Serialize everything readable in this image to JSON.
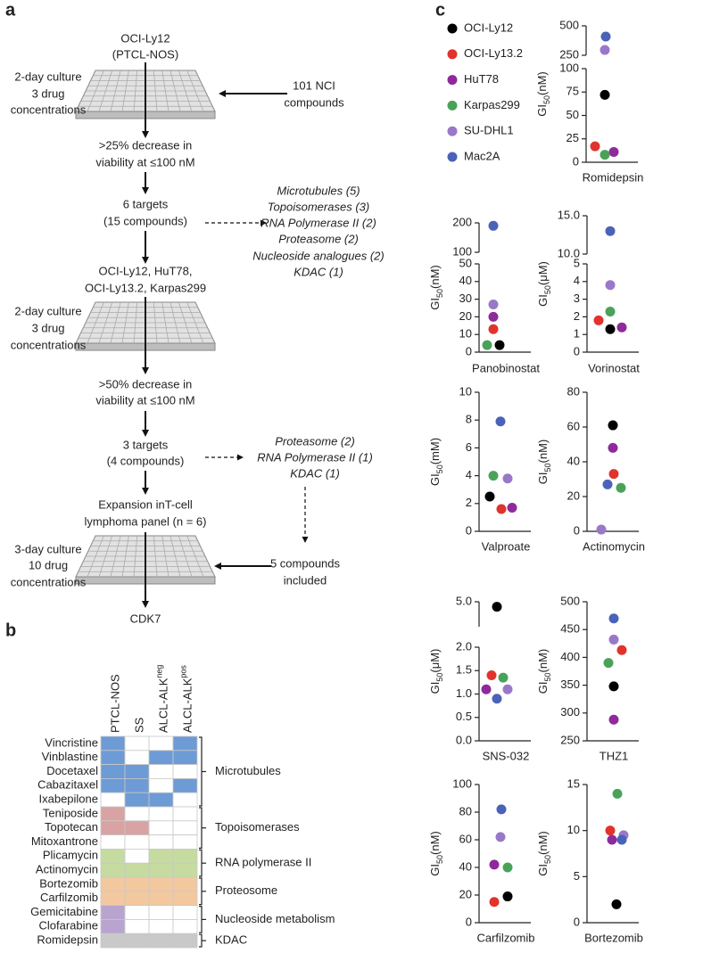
{
  "panel_labels": {
    "a": "a",
    "b": "b",
    "c": "c"
  },
  "flowchart": {
    "steps": [
      {
        "lines": [
          "OCI-Ly12",
          "(PTCL-NOS)"
        ]
      },
      {
        "lines": [
          "2-day culture",
          "3 drug",
          "concentrations"
        ]
      },
      {
        "lines": [
          "101 NCI",
          "compounds"
        ]
      },
      {
        "lines": [
          ">25% decrease in",
          "viability at ≤100 nM"
        ]
      },
      {
        "lines": [
          "6 targets",
          "(15 compounds)"
        ]
      },
      {
        "lines": [
          "Microtubules (5)",
          "Topoisomerases (3)",
          "RNA Polymerase II (2)",
          "Proteasome (2)",
          "Nucleoside analogues (2)",
          "KDAC (1)"
        ]
      },
      {
        "lines": [
          "OCI-Ly12, HuT78,",
          "OCI-Ly13.2, Karpas299"
        ]
      },
      {
        "lines": [
          "2-day culture",
          "3 drug",
          "concentrations"
        ]
      },
      {
        "lines": [
          ">50% decrease in",
          "viability at ≤100 nM"
        ]
      },
      {
        "lines": [
          "3 targets",
          "(4 compounds)"
        ]
      },
      {
        "lines": [
          "Proteasome (2)",
          "RNA Polymerase II (1)",
          "KDAC (1)"
        ]
      },
      {
        "lines": [
          "Expansion inT-cell",
          "lymphoma panel (n = 6)"
        ]
      },
      {
        "lines": [
          "3-day culture",
          "10 drug",
          "concentrations"
        ]
      },
      {
        "lines": [
          "5 compounds",
          "included"
        ]
      },
      {
        "lines": [
          "CDK7"
        ]
      }
    ]
  },
  "table": {
    "columns": [
      {
        "label": "PTCL-NOS"
      },
      {
        "label": "SS"
      },
      {
        "label": "ALCL-ALK",
        "sup": "neg"
      },
      {
        "label": "ALCL-ALK",
        "sup": "pos"
      }
    ],
    "rows": [
      {
        "name": "Vincristine",
        "cells": [
          1,
          0,
          0,
          1
        ]
      },
      {
        "name": "Vinblastine",
        "cells": [
          1,
          0,
          1,
          1
        ]
      },
      {
        "name": "Docetaxel",
        "cells": [
          1,
          1,
          0,
          0
        ]
      },
      {
        "name": "Cabazitaxel",
        "cells": [
          1,
          1,
          0,
          1
        ]
      },
      {
        "name": "Ixabepilone",
        "cells": [
          0,
          1,
          1,
          0
        ]
      },
      {
        "name": "Teniposide",
        "cells": [
          1,
          0,
          0,
          0
        ]
      },
      {
        "name": "Topotecan",
        "cells": [
          1,
          1,
          0,
          0
        ]
      },
      {
        "name": "Mitoxantrone",
        "cells": [
          0,
          0,
          0,
          0
        ]
      },
      {
        "name": "Plicamycin",
        "cells": [
          1,
          0,
          1,
          1
        ]
      },
      {
        "name": "Actinomycin",
        "cells": [
          1,
          1,
          1,
          1
        ]
      },
      {
        "name": "Bortezomib",
        "cells": [
          1,
          1,
          1,
          1
        ]
      },
      {
        "name": "Carfilzomib",
        "cells": [
          1,
          1,
          1,
          1
        ]
      },
      {
        "name": "Gemicitabine",
        "cells": [
          1,
          0,
          0,
          0
        ]
      },
      {
        "name": "Clofarabine",
        "cells": [
          1,
          0,
          0,
          0
        ]
      },
      {
        "name": "Romidepsin",
        "cells": [
          1,
          1,
          1,
          1
        ]
      }
    ],
    "groups": [
      {
        "label": "Microtubules",
        "first": 0,
        "last": 4,
        "color": "#6d9bd6"
      },
      {
        "label": "Topoisomerases",
        "first": 5,
        "last": 7,
        "color": "#d9a3a3"
      },
      {
        "label": "RNA polymerase II",
        "first": 8,
        "last": 9,
        "color": "#c6dba0"
      },
      {
        "label": "Proteosome",
        "first": 10,
        "last": 11,
        "color": "#f3c89f"
      },
      {
        "label": "Nucleoside metabolism",
        "first": 12,
        "last": 13,
        "color": "#b9a4d0"
      },
      {
        "label": "KDAC",
        "first": 14,
        "last": 14,
        "color": "#c9c9c9"
      }
    ]
  },
  "cell_lines": [
    {
      "name": "OCI-Ly12",
      "color": "#000000"
    },
    {
      "name": "OCI-Ly13.2",
      "color": "#e0332c"
    },
    {
      "name": "HuT78",
      "color": "#8e2a9a"
    },
    {
      "name": "Karpas299",
      "color": "#4aa25a"
    },
    {
      "name": "SU-DHL1",
      "color": "#9a78c8"
    },
    {
      "name": "Mac2A",
      "color": "#4a63b8"
    }
  ],
  "chart_data": [
    {
      "type": "strip",
      "xlabel": "Romidepsin",
      "ylabel": {
        "text": "GI",
        "sub": "50",
        "unit": "(nM)"
      },
      "values": [
        72,
        17,
        11,
        8,
        295,
        409
      ],
      "segments": [
        {
          "ylim": [
            0,
            100
          ],
          "yticks": [
            0,
            25,
            50,
            75,
            100
          ]
        },
        {
          "ylim": [
            250,
            500
          ],
          "yticks": [
            250,
            500
          ]
        }
      ]
    },
    {
      "type": "strip",
      "xlabel": "Panobinostat",
      "ylabel": {
        "text": "GI",
        "sub": "50",
        "unit": "(nM)"
      },
      "values": [
        4,
        13,
        20,
        4,
        27,
        190
      ],
      "segments": [
        {
          "ylim": [
            0,
            50
          ],
          "yticks": [
            0,
            10,
            20,
            30,
            40,
            50
          ]
        },
        {
          "ylim": [
            100,
            200
          ],
          "yticks": [
            100,
            200
          ]
        }
      ]
    },
    {
      "type": "strip",
      "xlabel": "Vorinostat",
      "ylabel": {
        "text": "GI",
        "sub": "50",
        "unit": "(μM)"
      },
      "values": [
        1.3,
        1.8,
        1.4,
        2.3,
        3.8,
        13
      ],
      "segments": [
        {
          "ylim": [
            0,
            5
          ],
          "yticks": [
            0,
            1,
            2,
            3,
            4,
            5
          ]
        },
        {
          "ylim": [
            10,
            15
          ],
          "yticks": [
            {
              "value": 10,
              "label": "10.0"
            },
            {
              "value": 15,
              "label": "15.0"
            }
          ]
        }
      ]
    },
    {
      "type": "strip",
      "xlabel": "Valproate",
      "ylabel": {
        "text": "GI",
        "sub": "50",
        "unit": "(mM)"
      },
      "values": [
        2.5,
        1.6,
        1.7,
        4.0,
        3.8,
        7.9
      ],
      "segments": [
        {
          "ylim": [
            0,
            10
          ],
          "yticks": [
            0,
            2,
            4,
            6,
            8,
            10
          ]
        }
      ]
    },
    {
      "type": "strip",
      "xlabel": "Actinomycin",
      "ylabel": {
        "text": "GI",
        "sub": "50",
        "unit": "(nM)"
      },
      "values": [
        61,
        33,
        48,
        25,
        1,
        27
      ],
      "segments": [
        {
          "ylim": [
            0,
            80
          ],
          "yticks": [
            0,
            20,
            40,
            60,
            80
          ]
        }
      ]
    },
    {
      "type": "strip",
      "xlabel": "SNS-032",
      "ylabel": {
        "text": "GI",
        "sub": "50",
        "unit": "(μM)"
      },
      "values": [
        4.9,
        1.4,
        1.1,
        1.35,
        1.1,
        0.9
      ],
      "segments": [
        {
          "ylim": [
            0,
            2
          ],
          "yticks": [
            {
              "value": 0,
              "label": "0.0"
            },
            0.5,
            {
              "value": 1,
              "label": "1.0"
            },
            1.5,
            {
              "value": 2,
              "label": "2.0"
            }
          ]
        },
        {
          "ylim": [
            4.5,
            5
          ],
          "yticks": [
            {
              "value": 5,
              "label": "5.0"
            }
          ]
        }
      ]
    },
    {
      "type": "strip",
      "xlabel": "THZ1",
      "ylabel": {
        "text": "GI",
        "sub": "50",
        "unit": "(nM)"
      },
      "values": [
        348,
        413,
        288,
        390,
        432,
        470
      ],
      "segments": [
        {
          "ylim": [
            250,
            500
          ],
          "yticks": [
            250,
            300,
            350,
            400,
            450,
            500
          ]
        }
      ]
    },
    {
      "type": "strip",
      "xlabel": "Carfilzomib",
      "ylabel": {
        "text": "GI",
        "sub": "50",
        "unit": "(nM)"
      },
      "values": [
        19,
        15,
        42,
        40,
        62,
        82
      ],
      "segments": [
        {
          "ylim": [
            0,
            100
          ],
          "yticks": [
            0,
            20,
            40,
            60,
            80,
            100
          ]
        }
      ]
    },
    {
      "type": "strip",
      "xlabel": "Bortezomib",
      "ylabel": {
        "text": "GI",
        "sub": "50",
        "unit": "(nM)"
      },
      "values": [
        2,
        10,
        9,
        14,
        9.5,
        9
      ],
      "segments": [
        {
          "ylim": [
            0,
            15
          ],
          "yticks": [
            0,
            5,
            10,
            15
          ]
        }
      ]
    }
  ]
}
